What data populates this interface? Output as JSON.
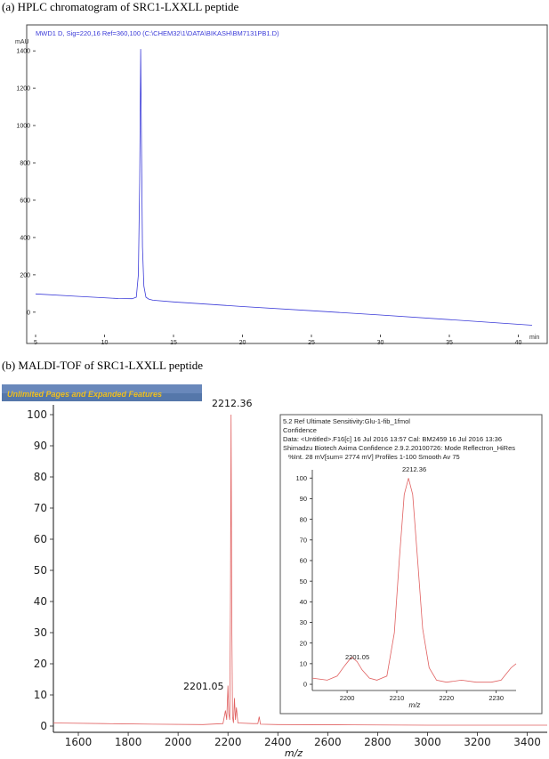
{
  "captions": {
    "a": "(a) HPLC chromatogram of SRC1-LXXLL peptide",
    "b": "(b) MALDI-TOF of SRC1-LXXLL peptide"
  },
  "banner": "Unlimited Pages and Expanded Features",
  "chart_data": [
    {
      "type": "line",
      "header": "MWD1 D, Sig=220,16 Ref=360,100 (C:\\CHEM32\\1\\DATA\\BIKASH\\BM7131PB1.D)",
      "ylabel": "mAU",
      "xlabel": "min",
      "xlim": [
        5,
        41
      ],
      "ylim": [
        -120,
        1520
      ],
      "xticks": [
        5,
        10,
        15,
        20,
        25,
        30,
        35,
        40
      ],
      "yticks": [
        0,
        200,
        400,
        600,
        800,
        1000,
        1200,
        1400
      ],
      "grid": false,
      "color": "#3a3ad8",
      "series": [
        {
          "x": [
            5,
            8,
            11,
            12.0,
            12.3,
            12.45,
            12.55,
            12.62,
            12.68,
            12.75,
            12.85,
            13.0,
            13.2,
            13.5,
            15,
            20,
            25,
            30,
            35,
            41
          ],
          "y": [
            98,
            85,
            73,
            72,
            80,
            200,
            700,
            1410,
            900,
            350,
            140,
            80,
            70,
            64,
            55,
            30,
            8,
            -15,
            -40,
            -70
          ]
        }
      ]
    },
    {
      "type": "line",
      "xlabel": "m/z",
      "xlim": [
        1500,
        3480
      ],
      "ylim": [
        -2,
        104
      ],
      "xticks": [
        1600,
        1800,
        2000,
        2200,
        2400,
        2600,
        2800,
        3000,
        3200,
        3400
      ],
      "yticks": [
        0,
        10,
        20,
        30,
        40,
        50,
        60,
        70,
        80,
        90,
        100
      ],
      "grid": false,
      "color": "#e06060",
      "peaks": [
        {
          "label": "2212.36",
          "x": 2212.36,
          "y": 100
        },
        {
          "label": "2201.05",
          "x": 2201.05,
          "y": 13
        }
      ],
      "series": [
        {
          "x": [
            1500,
            1700,
            1900,
            2100,
            2180,
            2190,
            2195,
            2200,
            2203,
            2207,
            2210,
            2212.36,
            2215,
            2218,
            2222,
            2226,
            2230,
            2234,
            2240,
            2300,
            2320,
            2325,
            2330,
            2400,
            2700,
            3000,
            3300,
            3480
          ],
          "y": [
            1,
            0.8,
            0.6,
            0.5,
            0.8,
            5,
            2,
            13,
            4,
            2,
            40,
            100,
            38,
            3,
            1,
            9,
            2,
            6,
            1,
            0.8,
            0.8,
            3,
            0.6,
            0.5,
            0.4,
            0.3,
            0.3,
            0.3
          ]
        }
      ]
    },
    {
      "type": "line",
      "header_lines": [
        "5.2 Ref Ultimate Sensitivity:Glu-1-fib_1fmol",
        "Confidence",
        "Data: <Untitled>.F16[c] 16 Jul 2016 13:57 Cal: BM2459 16 Jul 2016 13:36",
        "Shimadzu Biotech Axima Confidence 2.9.2.20100726: Mode Reflectron_HiRes",
        "%Int.    28 mV[sum= 2774 mV]  Profiles 1-100 Smooth Av 75"
      ],
      "xlabel": "m/z",
      "xlim": [
        2193,
        2234
      ],
      "ylim": [
        -3,
        104
      ],
      "xticks": [
        2200,
        2210,
        2220,
        2230
      ],
      "yticks": [
        0,
        10,
        20,
        30,
        40,
        50,
        60,
        70,
        80,
        90,
        100
      ],
      "grid": false,
      "color": "#e06060",
      "peaks": [
        {
          "label": "2212.36",
          "x": 2212.36,
          "y": 100
        },
        {
          "label": "2201.05",
          "x": 2201.05,
          "y": 13
        }
      ],
      "series": [
        {
          "x": [
            2193,
            2196,
            2198,
            2199.5,
            2200.5,
            2201.05,
            2202,
            2203,
            2204.5,
            2206,
            2208,
            2209.5,
            2210.5,
            2211.5,
            2212.36,
            2213.2,
            2214.2,
            2215.2,
            2216.5,
            2218,
            2220,
            2223,
            2226,
            2229,
            2231,
            2233,
            2234
          ],
          "y": [
            3,
            2,
            4,
            9,
            12,
            13,
            11,
            7,
            3,
            2,
            4,
            25,
            60,
            92,
            100,
            92,
            60,
            27,
            8,
            2,
            1,
            2,
            1,
            1,
            2,
            8,
            10
          ]
        }
      ]
    }
  ]
}
